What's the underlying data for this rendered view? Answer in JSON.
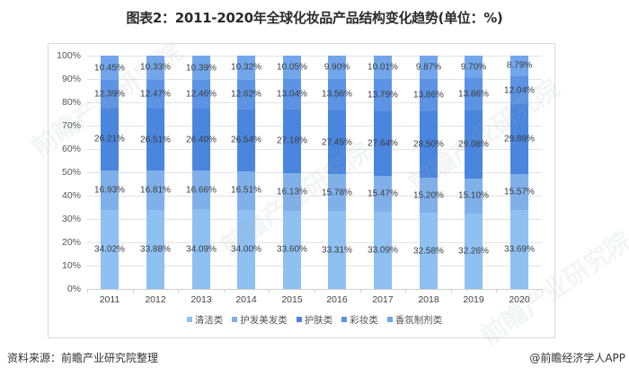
{
  "title": "图表2：2011-2020年全球化妆品产品结构变化趋势(单位：%)",
  "source": "资料来源：前瞻产业研究院整理",
  "credit": "@前瞻经济学人APP",
  "watermark": "前瞻产业研究院",
  "chart_data": {
    "type": "bar",
    "stacked": true,
    "title": "2011-2020年全球化妆品产品结构变化趋势(单位：%)",
    "xlabel": "",
    "ylabel": "",
    "ylim": [
      0,
      100
    ],
    "y_ticks": [
      "0%",
      "10%",
      "20%",
      "30%",
      "40%",
      "50%",
      "60%",
      "70%",
      "80%",
      "90%",
      "100%"
    ],
    "grid": true,
    "legend_position": "bottom",
    "categories": [
      "2011",
      "2012",
      "2013",
      "2014",
      "2015",
      "2016",
      "2017",
      "2018",
      "2019",
      "2020"
    ],
    "series": [
      {
        "name": "清洁类",
        "color": "#8ec0f2",
        "values": [
          34.02,
          33.88,
          34.09,
          34.0,
          33.6,
          33.31,
          33.09,
          32.58,
          32.26,
          33.69
        ]
      },
      {
        "name": "护发美发类",
        "color": "#80b0ea",
        "values": [
          16.93,
          16.81,
          16.66,
          16.51,
          16.13,
          15.78,
          15.47,
          15.2,
          15.1,
          15.57
        ]
      },
      {
        "name": "护肤类",
        "color": "#4a86de",
        "values": [
          26.21,
          26.51,
          26.4,
          26.54,
          27.18,
          27.45,
          27.64,
          28.5,
          29.08,
          29.89
        ]
      },
      {
        "name": "彩妆类",
        "color": "#5c93e4",
        "values": [
          12.39,
          12.47,
          12.46,
          12.62,
          13.04,
          13.56,
          13.79,
          13.86,
          13.86,
          12.04
        ]
      },
      {
        "name": "香氛制剂类",
        "color": "#72a6ec",
        "values": [
          10.45,
          10.33,
          10.39,
          10.32,
          10.05,
          9.9,
          10.01,
          9.87,
          9.7,
          8.79
        ]
      }
    ]
  }
}
